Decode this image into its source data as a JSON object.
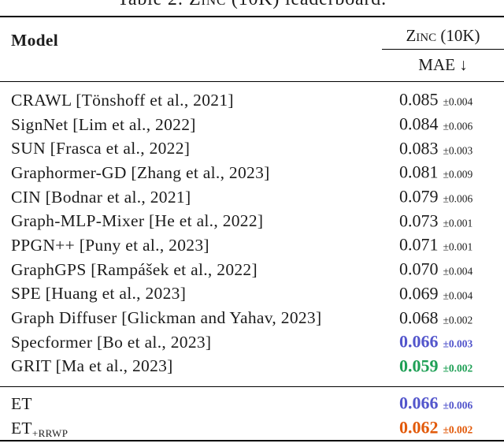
{
  "caption": {
    "prefix": "Table 2: ",
    "dataset_smallcaps": "Zinc",
    "suffix": " (10K) leaderboard."
  },
  "header": {
    "model_label": "Model",
    "dataset_smallcaps": "Zinc",
    "dataset_suffix": " (10K)",
    "metric_label": "MAE ↓"
  },
  "colors": {
    "default_text": "#1c1c1c",
    "highlight_blue": "#5356CC",
    "highlight_green": "#1FA056",
    "highlight_orange": "#E25A0A"
  },
  "table": {
    "rows": [
      {
        "model": "CRAWL [Tönshoff et al., 2021]",
        "value": "0.085",
        "pm": "±0.004",
        "color": "#1c1c1c"
      },
      {
        "model": "SignNet [Lim et al., 2022]",
        "value": "0.084",
        "pm": "±0.006",
        "color": "#1c1c1c"
      },
      {
        "model": "SUN [Frasca et al., 2022]",
        "value": "0.083",
        "pm": "±0.003",
        "color": "#1c1c1c"
      },
      {
        "model": "Graphormer-GD [Zhang et al., 2023]",
        "value": "0.081",
        "pm": "±0.009",
        "color": "#1c1c1c"
      },
      {
        "model": "CIN [Bodnar et al., 2021]",
        "value": "0.079",
        "pm": "±0.006",
        "color": "#1c1c1c"
      },
      {
        "model": "Graph-MLP-Mixer [He et al., 2022]",
        "value": "0.073",
        "pm": "±0.001",
        "color": "#1c1c1c"
      },
      {
        "model": "PPGN++ [Puny et al., 2023]",
        "value": "0.071",
        "pm": "±0.001",
        "color": "#1c1c1c"
      },
      {
        "model": "GraphGPS [Rampášek et al., 2022]",
        "value": "0.070",
        "pm": "±0.004",
        "color": "#1c1c1c"
      },
      {
        "model": "SPE [Huang et al., 2023]",
        "value": "0.069",
        "pm": "±0.004",
        "color": "#1c1c1c"
      },
      {
        "model": "Graph Diffuser [Glickman and Yahav, 2023]",
        "value": "0.068",
        "pm": "±0.002",
        "color": "#1c1c1c"
      },
      {
        "model": "Specformer [Bo et al., 2023]",
        "value": "0.066",
        "pm": "±0.003",
        "color": "#5356CC"
      },
      {
        "model": "GRIT [Ma et al., 2023]",
        "value": "0.059",
        "pm": "±0.002",
        "color": "#1FA056"
      }
    ],
    "footer_rows": [
      {
        "model": "ET",
        "sub": "",
        "value": "0.066",
        "pm": "±0.006",
        "color": "#5356CC"
      },
      {
        "model": "ET",
        "sub": "+RRWP",
        "value": "0.062",
        "pm": "±0.002",
        "color": "#E25A0A"
      }
    ]
  }
}
